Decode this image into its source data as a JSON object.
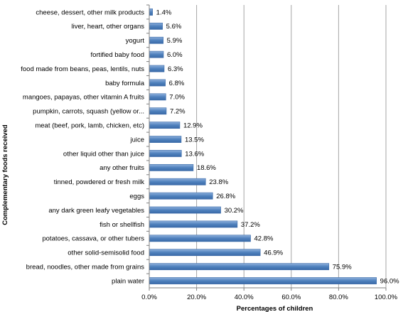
{
  "chart_data": {
    "type": "bar",
    "orientation": "horizontal",
    "xlabel": "Percentages of children",
    "ylabel": "Complementary foods received",
    "xlim": [
      0,
      100
    ],
    "xticks": [
      0,
      20,
      40,
      60,
      80,
      100
    ],
    "xtick_labels": [
      "0.0%",
      "20.0%",
      "40.0%",
      "60.0%",
      "80.0%",
      "100.0%"
    ],
    "grid": "vertical",
    "legend": "none",
    "bar_color": "#4f81bd",
    "categories": [
      "cheese, dessert, other milk products",
      "liver, heart, other organs",
      "yogurt",
      "fortified baby food",
      "food made from beans, peas, lentils, nuts",
      "baby formula",
      "mangoes, papayas, other vitamin A fruits",
      "pumpkin, carrots, squash (yellow or...",
      "meat (beef, pork, lamb, chicken, etc)",
      "juice",
      "other liquid other than juice",
      "any other fruits",
      "tinned, powdered or fresh milk",
      "eggs",
      "any dark green leafy vegetables",
      "fish or shellfish",
      "potatoes, cassava, or other tubers",
      "other solid-semisolid food",
      "bread, noodles, other made from grains",
      "plain water"
    ],
    "values": [
      1.4,
      5.6,
      5.9,
      6.0,
      6.3,
      6.8,
      7.0,
      7.2,
      12.9,
      13.5,
      13.6,
      18.6,
      23.8,
      26.8,
      30.2,
      37.2,
      42.8,
      46.9,
      75.9,
      96.0
    ],
    "value_labels": [
      "1.4%",
      "5.6%",
      "5.9%",
      "6.0%",
      "6.3%",
      "6.8%",
      "7.0%",
      "7.2%",
      "12.9%",
      "13.5%",
      "13.6%",
      "18.6%",
      "23.8%",
      "26.8%",
      "30.2%",
      "37.2%",
      "42.8%",
      "46.9%",
      "75.9%",
      "96.0%"
    ]
  }
}
